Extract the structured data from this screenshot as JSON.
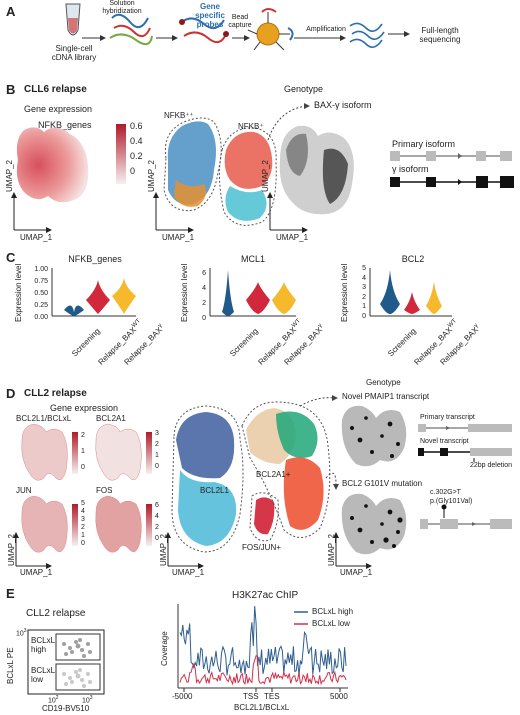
{
  "panelA": {
    "label": "A",
    "step1": "Single-cell",
    "step1b": "cDNA library",
    "step2": "Solution",
    "step2b": "hybridization",
    "step3": "Gene",
    "step3b": "specific",
    "step3c": "probes",
    "step4": "Bead",
    "step4b": "capture",
    "step5": "Amplification",
    "step6": "Full-length",
    "step6b": "sequencing"
  },
  "panelB": {
    "label": "B",
    "title": "CLL6 relapse",
    "gene_expression": "Gene expression",
    "nfkb_genes": "NFKB_genes",
    "colorbar_ticks": [
      "0.6",
      "0.4",
      "0.2",
      "0"
    ],
    "nfkb_pp": "NFKB⁺⁺",
    "nfkb_p": "NFKB⁺",
    "genotype": "Genotype",
    "bax_isoform": "BAX-γ isoform",
    "primary_isoform": "Primary isoform",
    "gamma_isoform": "γ isoform",
    "umap1": "UMAP_1",
    "umap2": "UMAP_2"
  },
  "panelC": {
    "label": "C",
    "ylabel": "Expression level",
    "categories": [
      "Screening",
      "Relapse_BAX",
      "Relapse_BAX"
    ],
    "cat_sup": [
      "",
      "WT",
      "γ"
    ],
    "plots": [
      {
        "title": "NFKB_genes",
        "ticks": [
          "1.00",
          "0.75",
          "0.50",
          "0.25",
          "0.00"
        ]
      },
      {
        "title": "MCL1",
        "ticks": [
          "6",
          "4",
          "2",
          "0"
        ]
      },
      {
        "title": "BCL2",
        "ticks": [
          "5",
          "4",
          "3",
          "2",
          "1",
          "0"
        ]
      }
    ]
  },
  "panelD": {
    "label": "D",
    "title": "CLL2 relapse",
    "gene_expression": "Gene expression",
    "genes": [
      "BCL2L1/BCLxL",
      "BCL2A1",
      "JUN",
      "FOS"
    ],
    "cb1": [
      "2",
      "1",
      "0"
    ],
    "cb2": [
      "3",
      "2",
      "1",
      "0"
    ],
    "cb3": [
      "5",
      "4",
      "3",
      "2",
      "1",
      "0"
    ],
    "cb4": [
      "6",
      "4",
      "2",
      "0"
    ],
    "bcl2l1": "BCL2L1",
    "bcl2a1": "BCL2A1+",
    "fosjun": "FOS/JUN+",
    "genotype": "Genotype",
    "novel_pmaip1": "Novel PMAIP1 transcript",
    "primary_transcript": "Primary transcript",
    "novel_transcript": "Novel transcript",
    "deletion": "22bp deletion",
    "bcl2_mut": "BCL2 G101V mutation",
    "mut1": "c.302G>T",
    "mut2": "p.(Gly101Val)",
    "umap1": "UMAP_1",
    "umap2": "UMAP_2"
  },
  "panelE": {
    "label": "E",
    "title": "CLL2 relapse",
    "ylabel": "BCLxL PE",
    "xlabel": "CD19-BV510",
    "high1": "BCLxL",
    "high2": "high",
    "low1": "BCLxL",
    "low2": "low",
    "xtick1": "10",
    "xtick2": "10",
    "xsup1": "2",
    "xsup2": "3",
    "ytick": "10",
    "ysup": "3",
    "chip_title": "H3K27ac ChIP",
    "chip_ylabel": "Coverage",
    "chip_xlabel": "BCL2L1/BCLxL",
    "chip_ticks": [
      "-5000",
      "TSS",
      "TES",
      "5000"
    ],
    "legend_high": "BCLxL high",
    "legend_low": "BCLxL low",
    "color_high": "#2f5f8f",
    "color_low": "#d0304a"
  }
}
